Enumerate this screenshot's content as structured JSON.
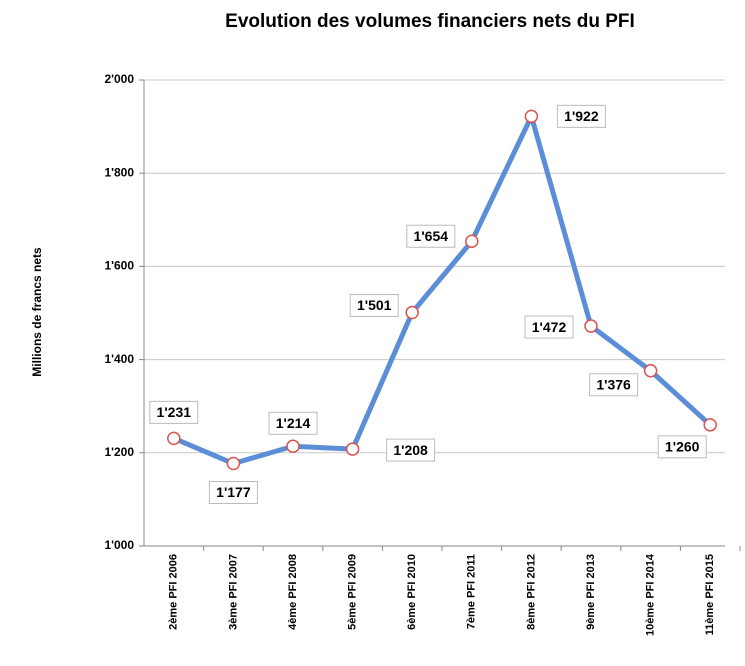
{
  "chart_data": {
    "type": "line",
    "title": "Evolution des volumes financiers nets du PFI",
    "y_label": "Millions de francs nets",
    "categories": [
      "2ème PFI 2006",
      "3ème PFI 2007",
      "4ème PFI 2008",
      "5ème PFI 2009",
      "6ème PFI 2010",
      "7ème PFI 2011",
      "8ème PFI 2012",
      "9ème PFI 2013",
      "10ème PFI 2014",
      "11ème PFI 2015"
    ],
    "series": [
      {
        "name": "Volumes financiers nets",
        "color": "#5b8ed6",
        "values": [
          1231,
          1177,
          1214,
          1208,
          1501,
          1654,
          1922,
          1472,
          1376,
          1260
        ],
        "value_labels": [
          "1'231",
          "1'177",
          "1'214",
          "1'208",
          "1'501",
          "1'654",
          "1'922",
          "1'472",
          "1'376",
          "1'260"
        ]
      }
    ],
    "marker_color": "#d9534f",
    "ylim": [
      1000,
      2000
    ],
    "yticks": [
      {
        "value": 1000,
        "label": "1'000"
      },
      {
        "value": 1200,
        "label": "1'200"
      },
      {
        "value": 1400,
        "label": "1'400"
      },
      {
        "value": 1600,
        "label": "1'600"
      },
      {
        "value": 1800,
        "label": "1'800"
      },
      {
        "value": 2000,
        "label": "2'000"
      }
    ],
    "grid": true
  }
}
